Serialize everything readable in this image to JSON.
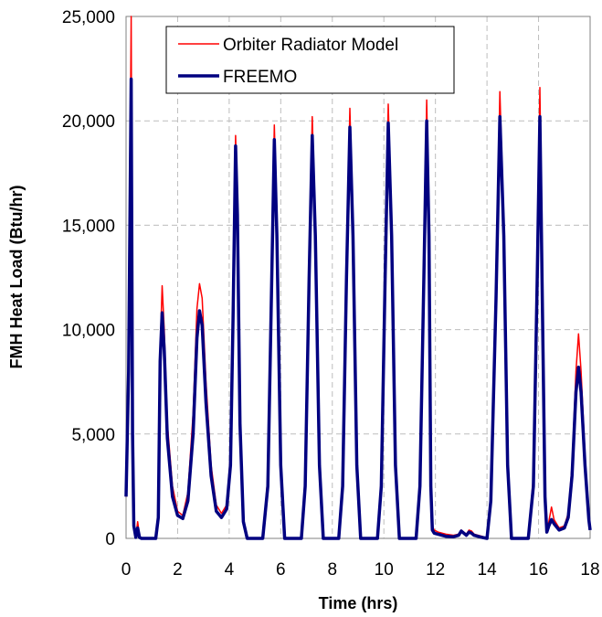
{
  "chart_data": {
    "type": "line",
    "title": "",
    "xlabel": "Time (hrs)",
    "ylabel": "FMH Heat Load (Btu/hr)",
    "xlim": [
      0,
      18
    ],
    "ylim": [
      0,
      25000
    ],
    "x_ticks": [
      0,
      2,
      4,
      6,
      8,
      10,
      12,
      14,
      16,
      18
    ],
    "y_ticks": [
      0,
      5000,
      10000,
      15000,
      20000,
      25000
    ],
    "x_tick_labels": [
      "0",
      "2",
      "4",
      "6",
      "8",
      "10",
      "12",
      "14",
      "16",
      "18"
    ],
    "y_tick_labels": [
      "0",
      "5,000",
      "10,000",
      "15,000",
      "20,000",
      "25,000"
    ],
    "grid": true,
    "legend_position": "top-right",
    "series": [
      {
        "name": "Orbiter Radiator Model",
        "color": "#ff0000",
        "points": [
          [
            0.0,
            2000
          ],
          [
            0.1,
            9000
          ],
          [
            0.2,
            25000
          ],
          [
            0.25,
            6000
          ],
          [
            0.3,
            800
          ],
          [
            0.38,
            100
          ],
          [
            0.45,
            800
          ],
          [
            0.52,
            100
          ],
          [
            0.6,
            0
          ],
          [
            1.15,
            0
          ],
          [
            1.25,
            1200
          ],
          [
            1.32,
            9000
          ],
          [
            1.4,
            12100
          ],
          [
            1.48,
            10000
          ],
          [
            1.6,
            5500
          ],
          [
            1.8,
            2500
          ],
          [
            2.0,
            1300
          ],
          [
            2.2,
            1100
          ],
          [
            2.4,
            2200
          ],
          [
            2.6,
            6000
          ],
          [
            2.75,
            11000
          ],
          [
            2.85,
            12200
          ],
          [
            2.95,
            11500
          ],
          [
            3.1,
            7500
          ],
          [
            3.3,
            3500
          ],
          [
            3.5,
            1600
          ],
          [
            3.7,
            1200
          ],
          [
            3.9,
            1600
          ],
          [
            4.05,
            4000
          ],
          [
            4.15,
            11000
          ],
          [
            4.25,
            19300
          ],
          [
            4.32,
            16000
          ],
          [
            4.42,
            6000
          ],
          [
            4.55,
            1000
          ],
          [
            4.7,
            0
          ],
          [
            5.3,
            0
          ],
          [
            5.5,
            3000
          ],
          [
            5.65,
            13000
          ],
          [
            5.75,
            19800
          ],
          [
            5.85,
            15000
          ],
          [
            6.0,
            4000
          ],
          [
            6.15,
            0
          ],
          [
            6.8,
            0
          ],
          [
            6.95,
            3000
          ],
          [
            7.1,
            13000
          ],
          [
            7.22,
            20200
          ],
          [
            7.34,
            15000
          ],
          [
            7.5,
            4000
          ],
          [
            7.65,
            0
          ],
          [
            8.25,
            0
          ],
          [
            8.4,
            3000
          ],
          [
            8.55,
            13000
          ],
          [
            8.68,
            20600
          ],
          [
            8.8,
            15000
          ],
          [
            8.95,
            4000
          ],
          [
            9.1,
            0
          ],
          [
            9.75,
            0
          ],
          [
            9.9,
            3000
          ],
          [
            10.05,
            13000
          ],
          [
            10.17,
            20800
          ],
          [
            10.3,
            15000
          ],
          [
            10.45,
            4000
          ],
          [
            10.6,
            0
          ],
          [
            11.25,
            0
          ],
          [
            11.4,
            3000
          ],
          [
            11.55,
            13000
          ],
          [
            11.66,
            21000
          ],
          [
            11.75,
            15000
          ],
          [
            11.82,
            3000
          ],
          [
            11.88,
            600
          ],
          [
            11.95,
            400
          ],
          [
            12.1,
            300
          ],
          [
            12.4,
            200
          ],
          [
            12.7,
            150
          ],
          [
            12.9,
            200
          ],
          [
            13.0,
            400
          ],
          [
            13.1,
            300
          ],
          [
            13.2,
            200
          ],
          [
            13.3,
            400
          ],
          [
            13.4,
            350
          ],
          [
            13.5,
            200
          ],
          [
            13.8,
            100
          ],
          [
            14.0,
            0
          ],
          [
            14.15,
            2000
          ],
          [
            14.35,
            12000
          ],
          [
            14.5,
            21400
          ],
          [
            14.65,
            15000
          ],
          [
            14.8,
            4000
          ],
          [
            14.95,
            0
          ],
          [
            15.6,
            0
          ],
          [
            15.8,
            3000
          ],
          [
            15.95,
            13000
          ],
          [
            16.05,
            21600
          ],
          [
            16.15,
            12000
          ],
          [
            16.25,
            2500
          ],
          [
            16.32,
            500
          ],
          [
            16.4,
            800
          ],
          [
            16.5,
            1500
          ],
          [
            16.6,
            900
          ],
          [
            16.8,
            500
          ],
          [
            17.0,
            600
          ],
          [
            17.15,
            1200
          ],
          [
            17.3,
            3500
          ],
          [
            17.45,
            8000
          ],
          [
            17.55,
            9800
          ],
          [
            17.65,
            8000
          ],
          [
            17.8,
            4000
          ],
          [
            17.95,
            1000
          ],
          [
            18.0,
            500
          ]
        ]
      },
      {
        "name": "FREEMO",
        "color": "#000080",
        "points": [
          [
            0.0,
            2000
          ],
          [
            0.1,
            8000
          ],
          [
            0.2,
            22000
          ],
          [
            0.25,
            5000
          ],
          [
            0.3,
            600
          ],
          [
            0.38,
            50
          ],
          [
            0.45,
            500
          ],
          [
            0.52,
            50
          ],
          [
            0.6,
            0
          ],
          [
            1.15,
            0
          ],
          [
            1.25,
            1000
          ],
          [
            1.32,
            8500
          ],
          [
            1.4,
            10800
          ],
          [
            1.48,
            9000
          ],
          [
            1.6,
            4800
          ],
          [
            1.8,
            2000
          ],
          [
            2.0,
            1100
          ],
          [
            2.2,
            950
          ],
          [
            2.4,
            1800
          ],
          [
            2.6,
            5000
          ],
          [
            2.75,
            9600
          ],
          [
            2.85,
            10900
          ],
          [
            2.95,
            10200
          ],
          [
            3.1,
            6500
          ],
          [
            3.3,
            3000
          ],
          [
            3.5,
            1300
          ],
          [
            3.7,
            1000
          ],
          [
            3.9,
            1400
          ],
          [
            4.05,
            3500
          ],
          [
            4.15,
            10500
          ],
          [
            4.25,
            18800
          ],
          [
            4.32,
            15500
          ],
          [
            4.42,
            5500
          ],
          [
            4.55,
            800
          ],
          [
            4.7,
            0
          ],
          [
            5.3,
            0
          ],
          [
            5.5,
            2500
          ],
          [
            5.65,
            12500
          ],
          [
            5.75,
            19100
          ],
          [
            5.85,
            14500
          ],
          [
            6.0,
            3500
          ],
          [
            6.15,
            0
          ],
          [
            6.8,
            0
          ],
          [
            6.95,
            2500
          ],
          [
            7.1,
            12500
          ],
          [
            7.22,
            19300
          ],
          [
            7.34,
            14500
          ],
          [
            7.5,
            3500
          ],
          [
            7.65,
            0
          ],
          [
            8.25,
            0
          ],
          [
            8.4,
            2500
          ],
          [
            8.55,
            12500
          ],
          [
            8.68,
            19700
          ],
          [
            8.8,
            14500
          ],
          [
            8.95,
            3500
          ],
          [
            9.1,
            0
          ],
          [
            9.75,
            0
          ],
          [
            9.9,
            2500
          ],
          [
            10.05,
            12500
          ],
          [
            10.17,
            19900
          ],
          [
            10.3,
            14500
          ],
          [
            10.45,
            3500
          ],
          [
            10.6,
            0
          ],
          [
            11.25,
            0
          ],
          [
            11.4,
            2500
          ],
          [
            11.55,
            12500
          ],
          [
            11.66,
            20000
          ],
          [
            11.75,
            14500
          ],
          [
            11.82,
            2500
          ],
          [
            11.88,
            400
          ],
          [
            11.95,
            250
          ],
          [
            12.1,
            200
          ],
          [
            12.4,
            100
          ],
          [
            12.7,
            80
          ],
          [
            12.9,
            150
          ],
          [
            13.0,
            350
          ],
          [
            13.1,
            250
          ],
          [
            13.2,
            150
          ],
          [
            13.3,
            300
          ],
          [
            13.4,
            250
          ],
          [
            13.5,
            150
          ],
          [
            13.8,
            50
          ],
          [
            14.0,
            0
          ],
          [
            14.15,
            1800
          ],
          [
            14.35,
            11500
          ],
          [
            14.5,
            20200
          ],
          [
            14.65,
            14500
          ],
          [
            14.8,
            3500
          ],
          [
            14.95,
            0
          ],
          [
            15.6,
            0
          ],
          [
            15.8,
            2500
          ],
          [
            15.95,
            12500
          ],
          [
            16.05,
            20200
          ],
          [
            16.15,
            11000
          ],
          [
            16.25,
            2000
          ],
          [
            16.32,
            300
          ],
          [
            16.4,
            600
          ],
          [
            16.5,
            900
          ],
          [
            16.6,
            700
          ],
          [
            16.8,
            400
          ],
          [
            17.0,
            500
          ],
          [
            17.15,
            1000
          ],
          [
            17.3,
            3000
          ],
          [
            17.45,
            7000
          ],
          [
            17.55,
            8200
          ],
          [
            17.65,
            7000
          ],
          [
            17.8,
            3500
          ],
          [
            17.95,
            900
          ],
          [
            18.0,
            400
          ]
        ]
      }
    ]
  }
}
